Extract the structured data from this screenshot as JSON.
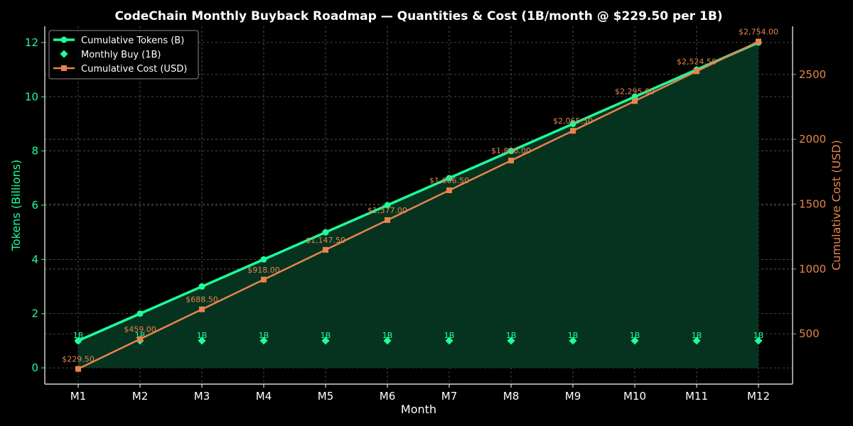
{
  "chart_data": {
    "type": "line",
    "title": "CodeChain Monthly Buyback Roadmap — Quantities & Cost (1B/month @ $229.50 per 1B)",
    "xlabel": "Month",
    "ylabel_left": "Tokens (Billions)",
    "ylabel_right": "Cumulative Cost (USD)",
    "categories": [
      "M1",
      "M2",
      "M3",
      "M4",
      "M5",
      "M6",
      "M7",
      "M8",
      "M9",
      "M10",
      "M11",
      "M12"
    ],
    "ylim_left": [
      -0.6,
      12.6
    ],
    "yticks_left": [
      0,
      2,
      4,
      6,
      8,
      10,
      12
    ],
    "ylim_right": [
      112.0,
      2871.5
    ],
    "yticks_right": [
      500,
      1000,
      1500,
      2000,
      2500
    ],
    "grid": true,
    "legend_position": "top-left",
    "series": [
      {
        "name": "Cumulative Tokens (B)",
        "axis": "left",
        "style": "line-fill",
        "color": "#1dff9a",
        "fill_color": "#06331f",
        "values": [
          1,
          2,
          3,
          4,
          5,
          6,
          7,
          8,
          9,
          10,
          11,
          12
        ]
      },
      {
        "name": "Monthly Buy (1B)",
        "axis": "left",
        "style": "diamond-markers",
        "color": "#1dff9a",
        "values": [
          1,
          1,
          1,
          1,
          1,
          1,
          1,
          1,
          1,
          1,
          1,
          1
        ],
        "labels": [
          "1B",
          "1B",
          "1B",
          "1B",
          "1B",
          "1B",
          "1B",
          "1B",
          "1B",
          "1B",
          "1B",
          "1B"
        ]
      },
      {
        "name": "Cumulative Cost (USD)",
        "axis": "right",
        "style": "line-square",
        "color": "#e8834e",
        "values": [
          229.5,
          459.0,
          688.5,
          918.0,
          1147.5,
          1377.0,
          1606.5,
          1836.0,
          2065.5,
          2295.0,
          2524.5,
          2754.0
        ],
        "labels": [
          "$229.50",
          "$459.00",
          "$688.50",
          "$918.00",
          "$1,147.50",
          "$1,377.00",
          "$1,606.50",
          "$1,836.00",
          "$2,065.50",
          "$2,295.00",
          "$2,524.50",
          "$2,754.00"
        ]
      }
    ]
  }
}
